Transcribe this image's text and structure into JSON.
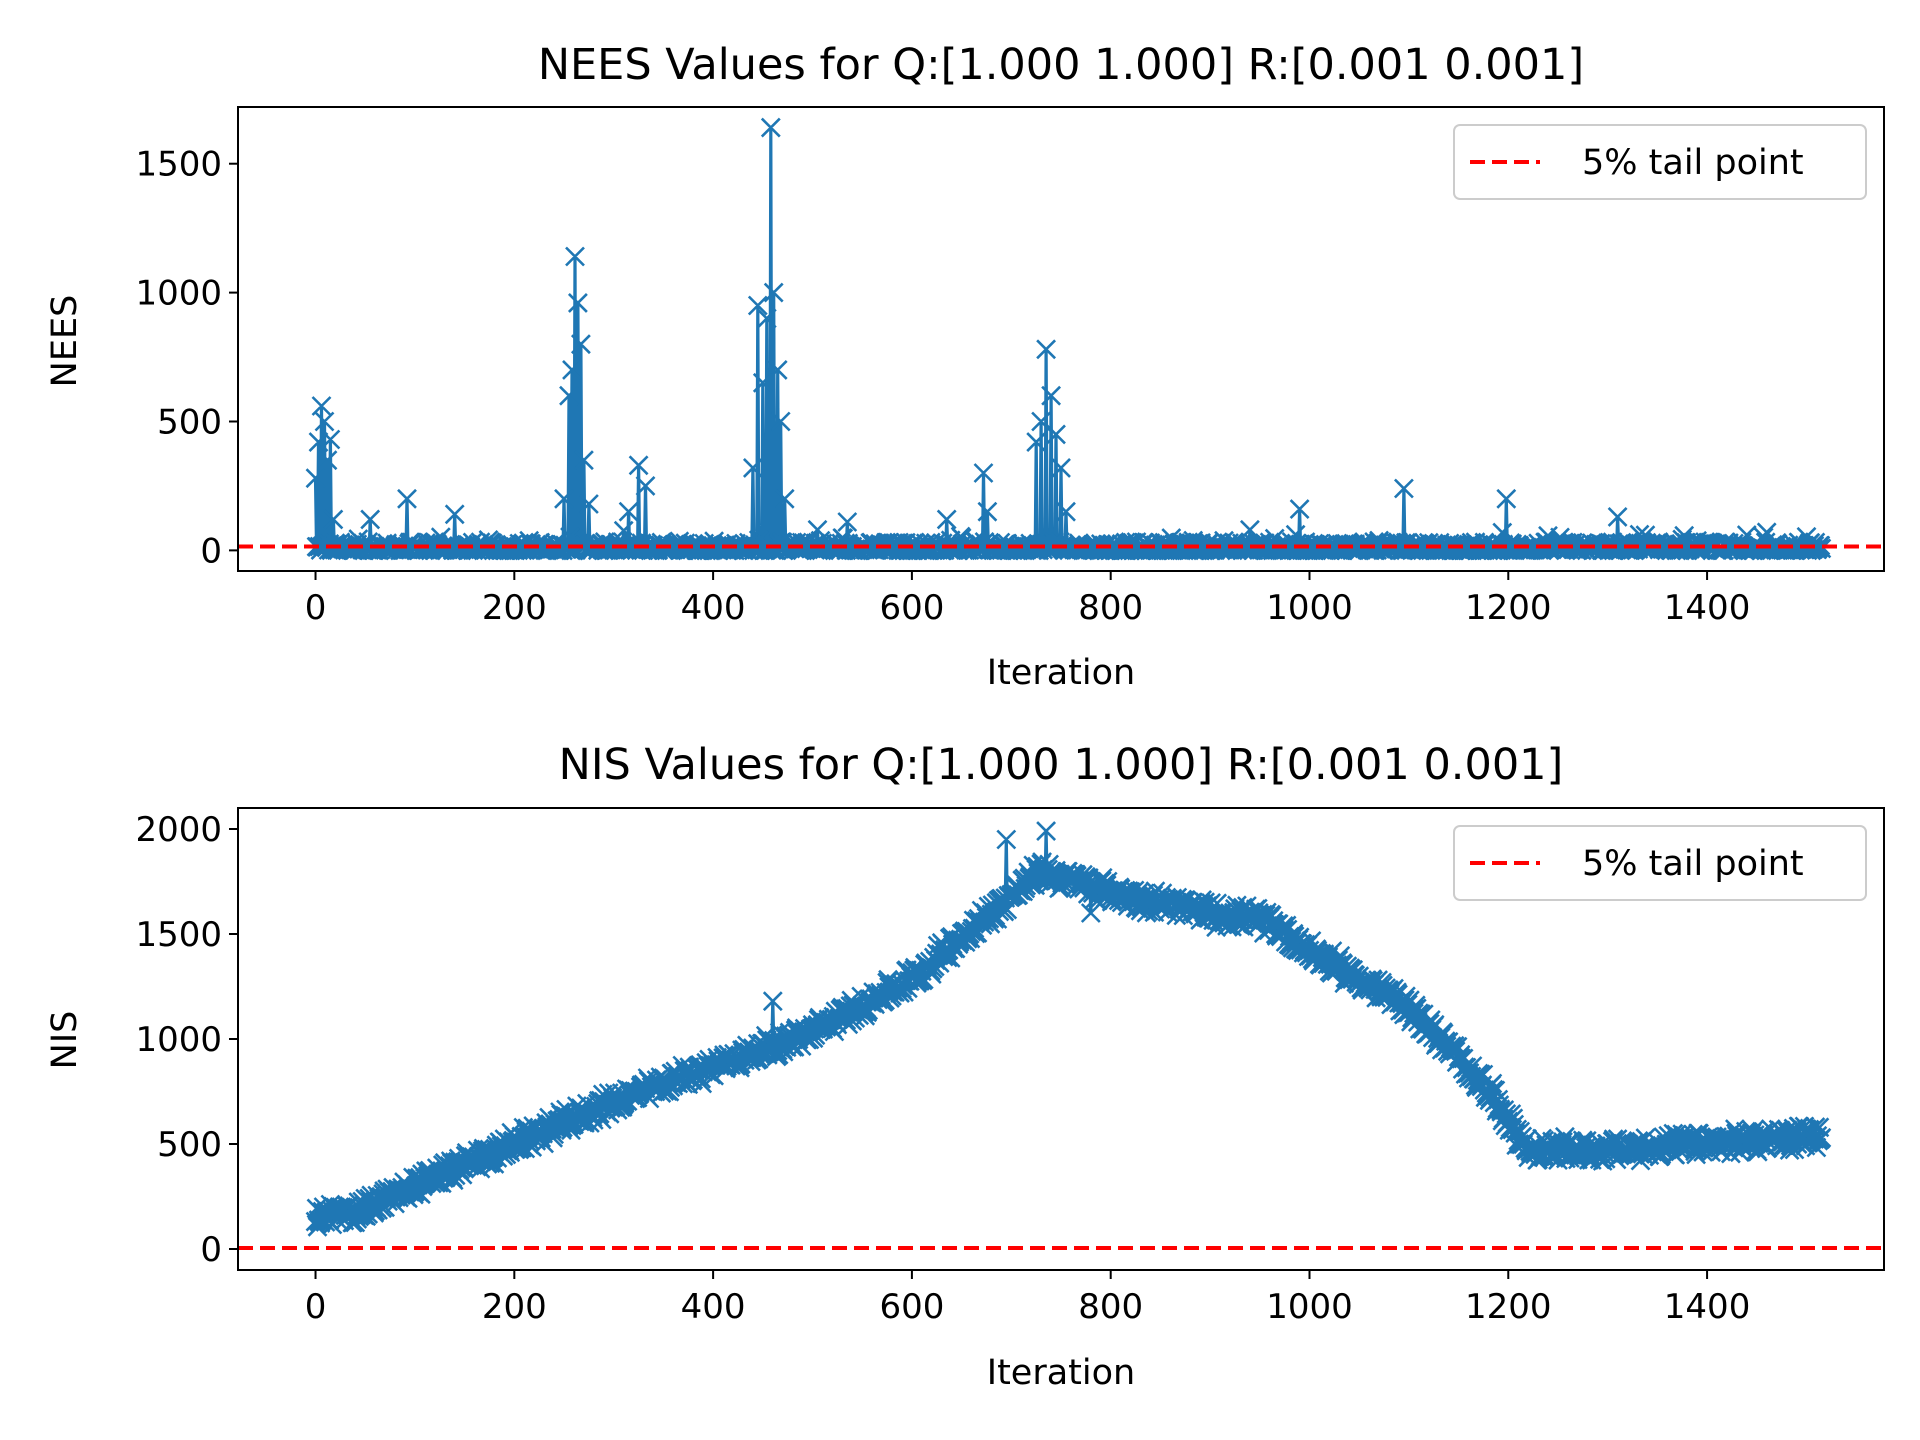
{
  "colors": {
    "series": "#1f77b4",
    "threshold": "#ff0000",
    "axes": "#000000",
    "background": "#ffffff"
  },
  "chart_data": [
    {
      "type": "line",
      "marker": "x",
      "title": "NEES Values for Q:[1.000 1.000] R:[0.001 0.001]",
      "xlabel": "Iteration",
      "ylabel": "NEES",
      "xlim": [
        -78,
        1578
      ],
      "ylim": [
        -80,
        1720
      ],
      "xticks": [
        0,
        200,
        400,
        600,
        800,
        1000,
        1200,
        1400
      ],
      "xtick_labels": [
        "0",
        "200",
        "400",
        "600",
        "800",
        "1000",
        "1200",
        "1400"
      ],
      "yticks": [
        0,
        500,
        1000,
        1500
      ],
      "ytick_labels": [
        "0",
        "500",
        "1000",
        "1500"
      ],
      "grid": false,
      "legend": {
        "placement": "top-right",
        "entries": [
          "5% tail point"
        ]
      },
      "threshold": {
        "value": 15,
        "label": "5% tail point",
        "style": "dashed"
      },
      "series": [
        {
          "x_start": 0,
          "x_end": 1515,
          "step": 1,
          "noise_baseline": 15,
          "spikes": [
            {
              "x": 0,
              "y": 280
            },
            {
              "x": 3,
              "y": 420
            },
            {
              "x": 6,
              "y": 560
            },
            {
              "x": 9,
              "y": 500
            },
            {
              "x": 12,
              "y": 350
            },
            {
              "x": 15,
              "y": 430
            },
            {
              "x": 18,
              "y": 120
            },
            {
              "x": 55,
              "y": 120
            },
            {
              "x": 92,
              "y": 200
            },
            {
              "x": 140,
              "y": 140
            },
            {
              "x": 250,
              "y": 200
            },
            {
              "x": 255,
              "y": 600
            },
            {
              "x": 258,
              "y": 700
            },
            {
              "x": 261,
              "y": 1140
            },
            {
              "x": 264,
              "y": 960
            },
            {
              "x": 267,
              "y": 800
            },
            {
              "x": 270,
              "y": 350
            },
            {
              "x": 275,
              "y": 180
            },
            {
              "x": 315,
              "y": 150
            },
            {
              "x": 325,
              "y": 330
            },
            {
              "x": 332,
              "y": 250
            },
            {
              "x": 440,
              "y": 320
            },
            {
              "x": 445,
              "y": 950
            },
            {
              "x": 450,
              "y": 650
            },
            {
              "x": 454,
              "y": 900
            },
            {
              "x": 458,
              "y": 1640
            },
            {
              "x": 461,
              "y": 1000
            },
            {
              "x": 465,
              "y": 700
            },
            {
              "x": 468,
              "y": 500
            },
            {
              "x": 472,
              "y": 200
            },
            {
              "x": 505,
              "y": 80
            },
            {
              "x": 535,
              "y": 110
            },
            {
              "x": 635,
              "y": 120
            },
            {
              "x": 672,
              "y": 300
            },
            {
              "x": 676,
              "y": 150
            },
            {
              "x": 725,
              "y": 420
            },
            {
              "x": 730,
              "y": 500
            },
            {
              "x": 735,
              "y": 780
            },
            {
              "x": 740,
              "y": 600
            },
            {
              "x": 745,
              "y": 450
            },
            {
              "x": 750,
              "y": 320
            },
            {
              "x": 755,
              "y": 150
            },
            {
              "x": 940,
              "y": 80
            },
            {
              "x": 990,
              "y": 160
            },
            {
              "x": 1095,
              "y": 240
            },
            {
              "x": 1198,
              "y": 200
            },
            {
              "x": 1310,
              "y": 130
            },
            {
              "x": 1460,
              "y": 70
            }
          ]
        }
      ]
    },
    {
      "type": "line",
      "marker": "x",
      "title": "NIS Values for Q:[1.000 1.000] R:[0.001 0.001]",
      "xlabel": "Iteration",
      "ylabel": "NIS",
      "xlim": [
        -78,
        1578
      ],
      "ylim": [
        -100,
        2100
      ],
      "xticks": [
        0,
        200,
        400,
        600,
        800,
        1000,
        1200,
        1400
      ],
      "xtick_labels": [
        "0",
        "200",
        "400",
        "600",
        "800",
        "1000",
        "1200",
        "1400"
      ],
      "yticks": [
        0,
        500,
        1000,
        1500,
        2000
      ],
      "ytick_labels": [
        "0",
        "500",
        "1000",
        "1500",
        "2000"
      ],
      "grid": false,
      "legend": {
        "placement": "top-right",
        "entries": [
          "5% tail point"
        ]
      },
      "threshold": {
        "value": 5,
        "label": "5% tail point",
        "style": "dashed"
      },
      "series": [
        {
          "x_start": 0,
          "x_end": 1515,
          "step": 1,
          "noise_amplitude": 65,
          "trend_points": [
            {
              "x": 0,
              "y": 150
            },
            {
              "x": 50,
              "y": 190
            },
            {
              "x": 100,
              "y": 300
            },
            {
              "x": 200,
              "y": 500
            },
            {
              "x": 300,
              "y": 700
            },
            {
              "x": 400,
              "y": 870
            },
            {
              "x": 500,
              "y": 1030
            },
            {
              "x": 600,
              "y": 1290
            },
            {
              "x": 680,
              "y": 1600
            },
            {
              "x": 730,
              "y": 1800
            },
            {
              "x": 800,
              "y": 1700
            },
            {
              "x": 900,
              "y": 1600
            },
            {
              "x": 960,
              "y": 1560
            },
            {
              "x": 1000,
              "y": 1420
            },
            {
              "x": 1100,
              "y": 1150
            },
            {
              "x": 1180,
              "y": 760
            },
            {
              "x": 1220,
              "y": 470
            },
            {
              "x": 1300,
              "y": 470
            },
            {
              "x": 1400,
              "y": 500
            },
            {
              "x": 1510,
              "y": 540
            }
          ],
          "peak_outliers": [
            {
              "x": 460,
              "y": 1180
            },
            {
              "x": 695,
              "y": 1950
            },
            {
              "x": 735,
              "y": 1990
            },
            {
              "x": 780,
              "y": 1600
            }
          ]
        }
      ]
    }
  ]
}
